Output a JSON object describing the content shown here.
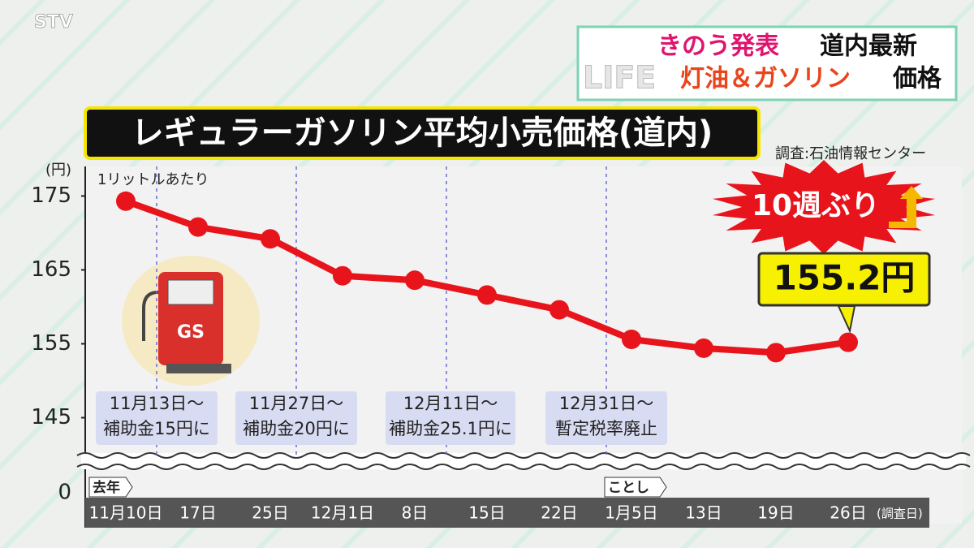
{
  "header": {
    "logo": "STV",
    "line1a": "きのう発表",
    "line1b": "道内最新",
    "corner": "LIFE",
    "line2a": "灯油＆ガソリン",
    "line2b": "価格"
  },
  "chart_data": {
    "type": "line",
    "title": "レギュラーガソリン平均小売価格(道内)",
    "y_unit": "(円)",
    "subtitle": "1リットルあたり",
    "source": "調査:石油情報センター",
    "categories": [
      "11月10日",
      "17日",
      "25日",
      "12月1日",
      "8日",
      "15日",
      "22日",
      "1月5日",
      "13日",
      "19日",
      "26日"
    ],
    "x_suffix": "(調査日)",
    "year_tags": [
      "去年",
      "ことし"
    ],
    "values": [
      174.3,
      170.8,
      169.2,
      164.2,
      163.6,
      161.6,
      159.6,
      155.6,
      154.4,
      153.8,
      155.2
    ],
    "value_labels": [
      null,
      null,
      null,
      null,
      null,
      null,
      null,
      null,
      null,
      null,
      "155.2円"
    ],
    "color": "#e8141c",
    "ylim": [
      140,
      179
    ],
    "yticks": [
      145,
      155,
      165,
      175
    ],
    "ybreak_tick": 0,
    "grid": false,
    "burst": "10週ぶり",
    "icon_label": "GS",
    "annotations": [
      [
        "11月13日〜",
        "補助金15円に"
      ],
      [
        "11月27日〜",
        "補助金20円に"
      ],
      [
        "12月11日〜",
        "補助金25.1円に"
      ],
      [
        "12月31日〜",
        "暫定税率廃止"
      ]
    ]
  }
}
